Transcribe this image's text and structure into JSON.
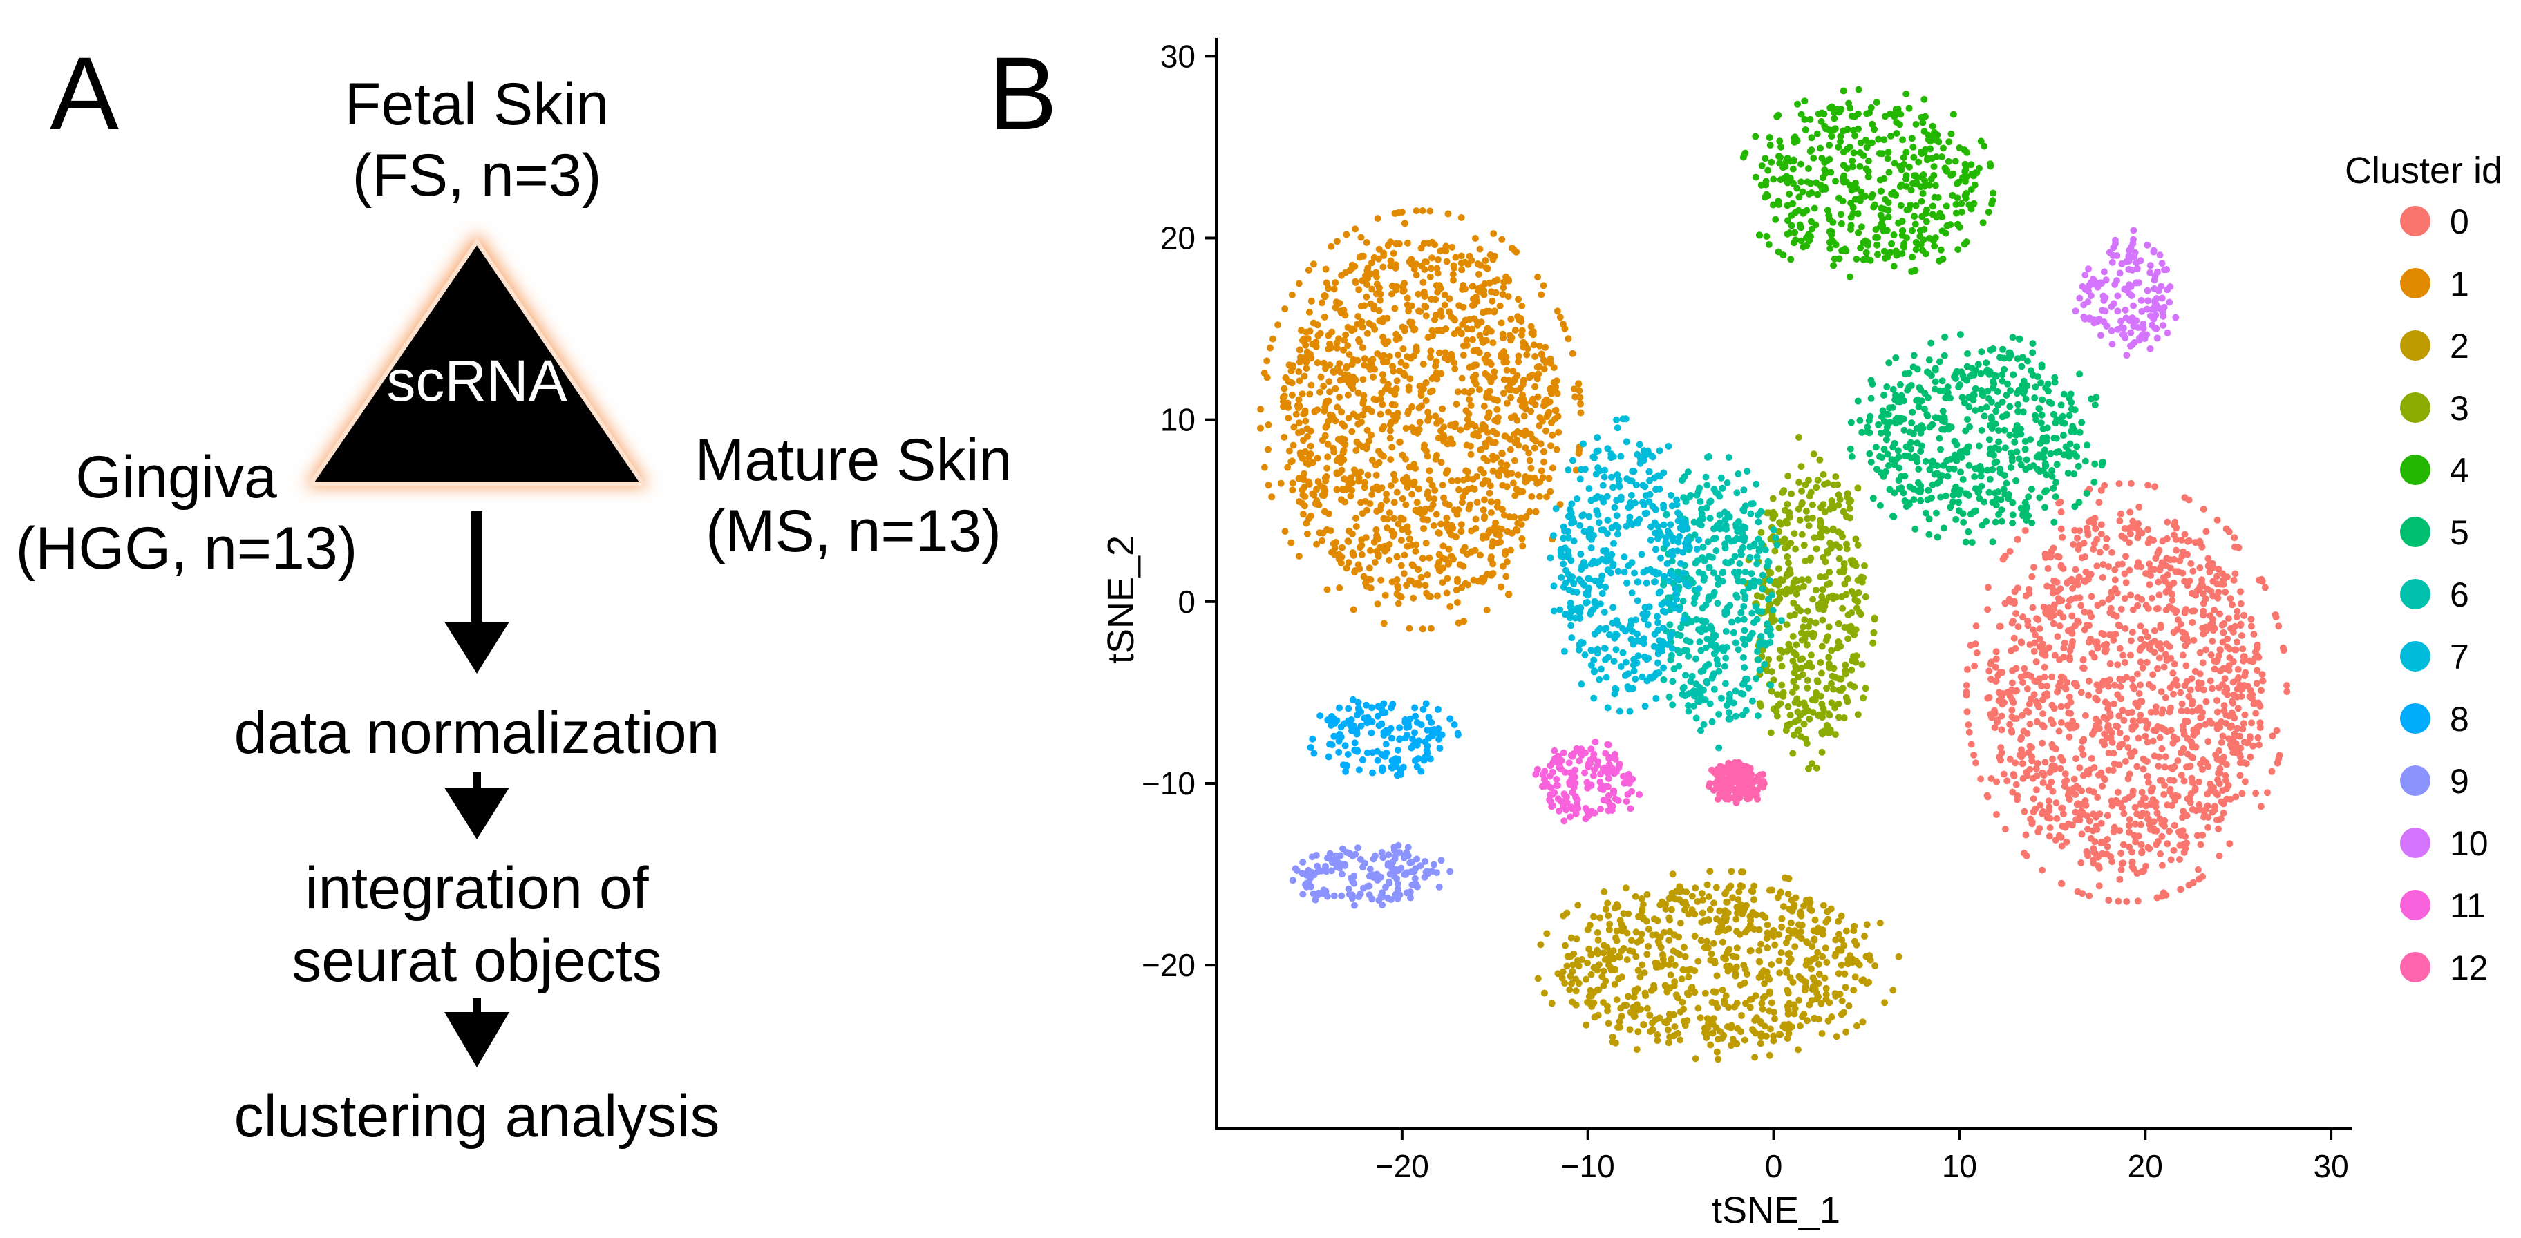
{
  "panel_a": {
    "letter": "A",
    "top_label_line1": "Fetal Skin",
    "top_label_line2": "(FS, n=3)",
    "left_label_line1": "Gingiva",
    "left_label_line2": "(HGG, n=13)",
    "right_label_line1": "Mature Skin",
    "right_label_line2": "(MS, n=13)",
    "triangle_label": "scRNA",
    "steps": [
      "data normalization",
      "integration of",
      "seurat objects",
      "clustering analysis"
    ]
  },
  "panel_b": {
    "letter": "B"
  },
  "chart_data": {
    "type": "scatter",
    "xlabel": "tSNE_1",
    "ylabel": "tSNE_2",
    "xlim": [
      -30,
      31
    ],
    "ylim": [
      -29,
      31
    ],
    "xticks": [
      -20,
      -10,
      0,
      10,
      20,
      30
    ],
    "yticks": [
      -20,
      -10,
      0,
      10,
      20,
      30
    ],
    "xtick_labels": [
      "−20",
      "−10",
      "0",
      "10",
      "20",
      "30"
    ],
    "ytick_labels": [
      "−20",
      "−10",
      "0",
      "10",
      "20",
      "30"
    ],
    "grid": false,
    "legend": {
      "title": "Cluster id",
      "position": "right"
    },
    "series": [
      {
        "name": "0",
        "color": "#F8766D",
        "center": [
          19,
          -5
        ],
        "spread": [
          7.5,
          10
        ]
      },
      {
        "name": "1",
        "color": "#E18A00",
        "center": [
          -19,
          10
        ],
        "spread": [
          7.5,
          10
        ]
      },
      {
        "name": "2",
        "color": "#BE9C00",
        "center": [
          -3,
          -20
        ],
        "spread": [
          8.5,
          4.5
        ]
      },
      {
        "name": "3",
        "color": "#8CAB00",
        "center": [
          2,
          0
        ],
        "spread": [
          3,
          8
        ]
      },
      {
        "name": "4",
        "color": "#24B700",
        "center": [
          5,
          23
        ],
        "spread": [
          6,
          4.5
        ]
      },
      {
        "name": "5",
        "color": "#00BE70",
        "center": [
          11,
          9
        ],
        "spread": [
          6,
          5
        ]
      },
      {
        "name": "6",
        "color": "#00C1AB",
        "center": [
          -3,
          0
        ],
        "spread": [
          3,
          7
        ]
      },
      {
        "name": "7",
        "color": "#00BBDA",
        "center": [
          -8,
          2
        ],
        "spread": [
          3.5,
          7
        ]
      },
      {
        "name": "8",
        "color": "#00ACFC",
        "center": [
          -21,
          -7.5
        ],
        "spread": [
          3.5,
          2
        ]
      },
      {
        "name": "9",
        "color": "#8B93FF",
        "center": [
          -22,
          -15
        ],
        "spread": [
          4,
          1.5
        ]
      },
      {
        "name": "10",
        "color": "#D575FE",
        "center": [
          19,
          17
        ],
        "spread": [
          2.5,
          3
        ]
      },
      {
        "name": "11",
        "color": "#F962DD",
        "center": [
          -10,
          -10
        ],
        "spread": [
          2.5,
          2
        ]
      },
      {
        "name": "12",
        "color": "#FF65AC",
        "center": [
          -2,
          -10
        ],
        "spread": [
          1.5,
          1
        ]
      }
    ]
  }
}
